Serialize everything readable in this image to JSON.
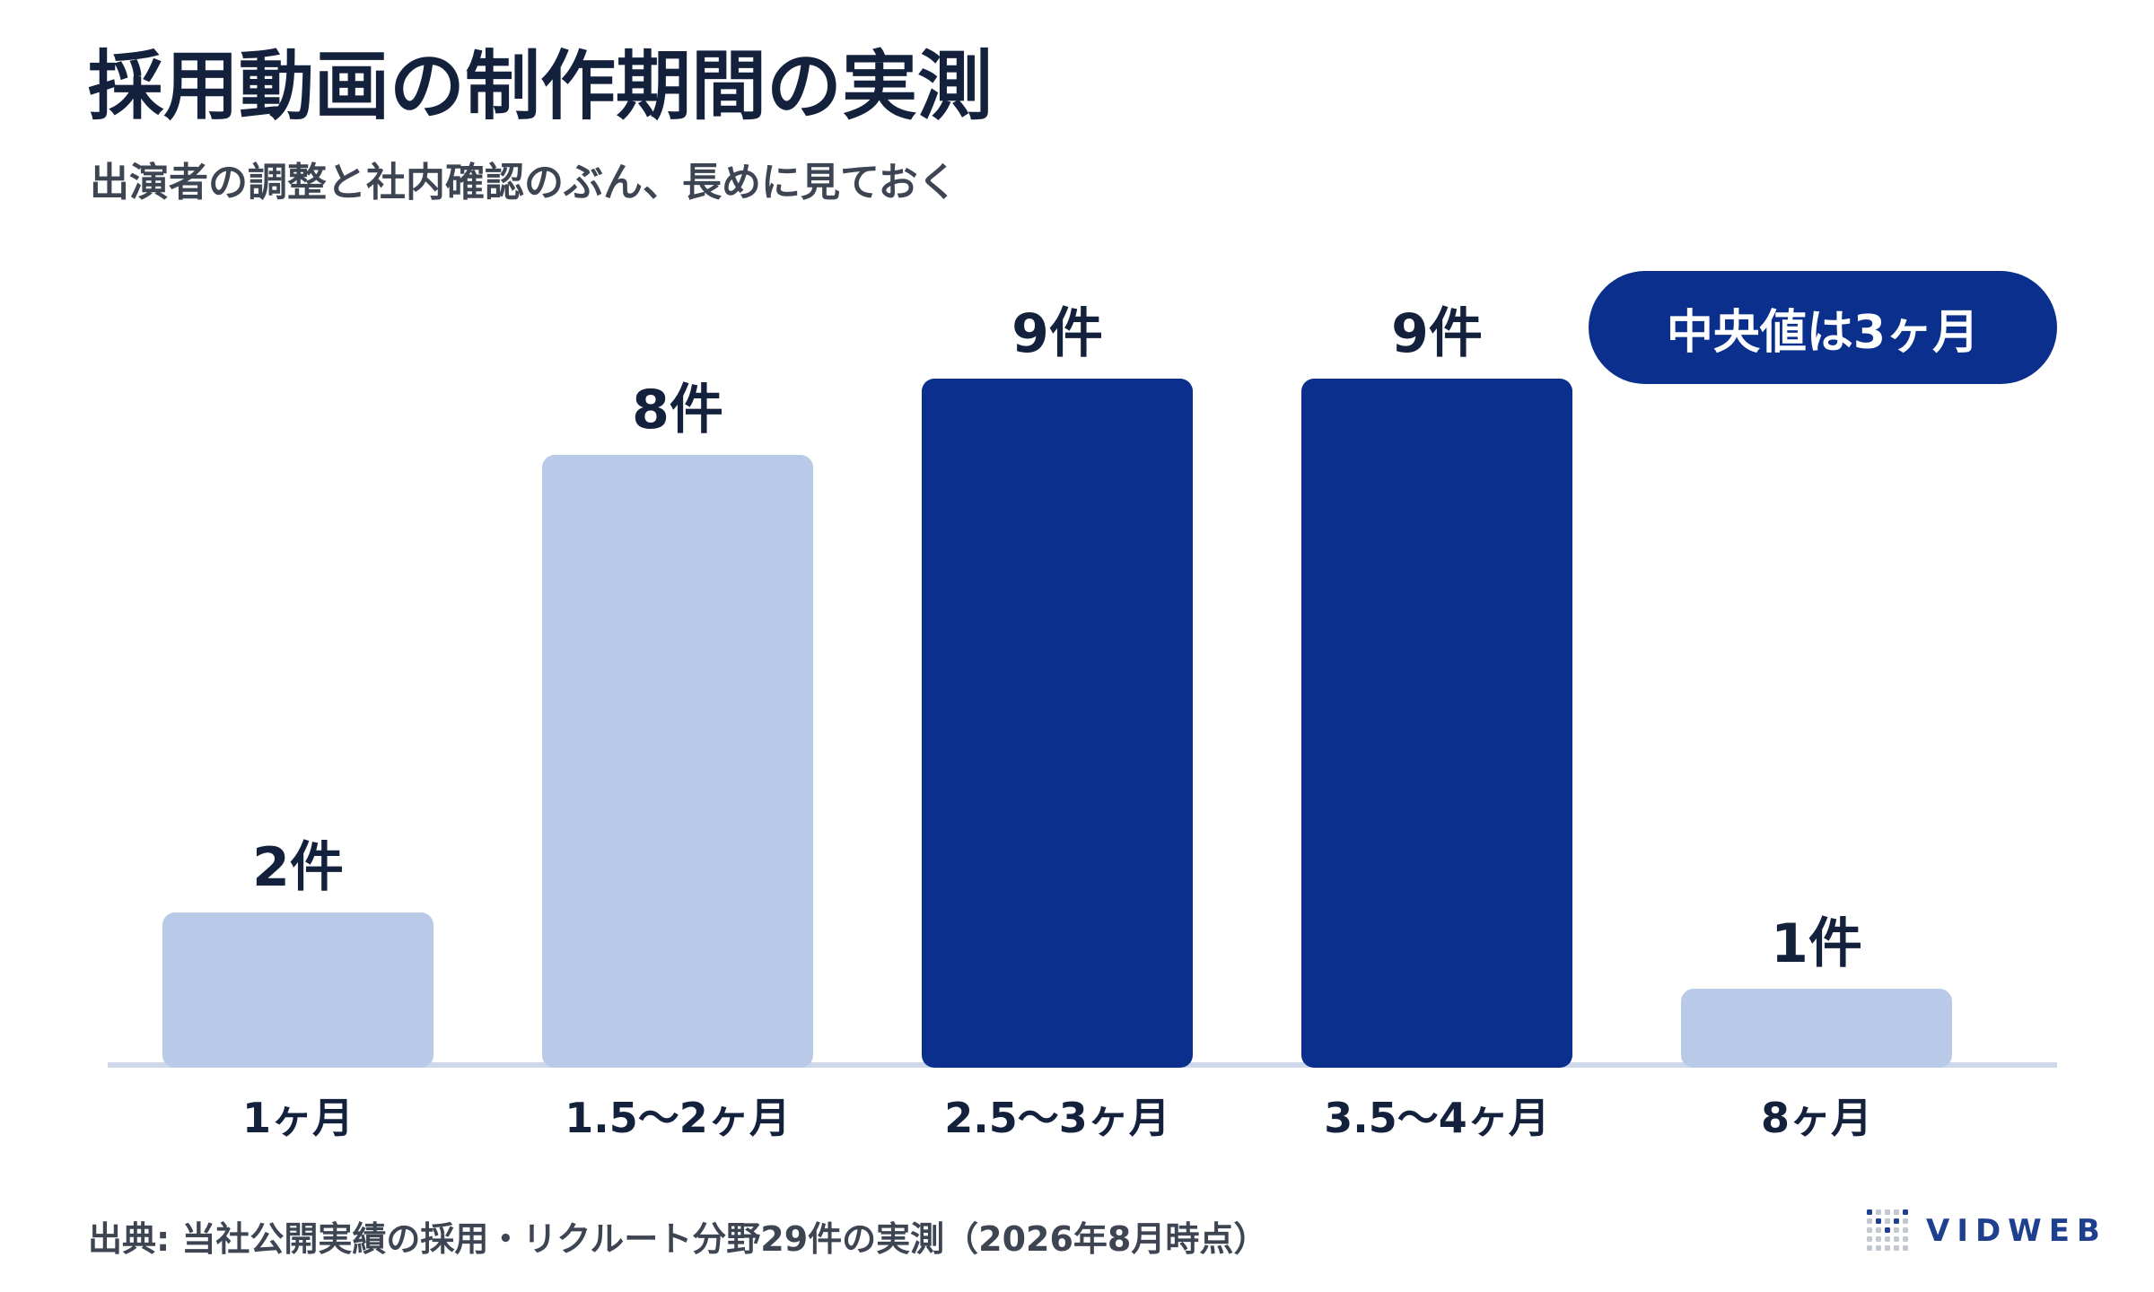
{
  "title": "採用動画の制作期間の実測",
  "subtitle": "出演者の調整と社内確認のぶん、長めに見ておく",
  "badge": {
    "text": "中央値は3ヶ月"
  },
  "source": "出典: 当社公開実績の採用・リクルート分野29件の実測（2026年8月時点）",
  "logo": {
    "text": "VIDWEB",
    "icon": "dot-grid-v-icon"
  },
  "colors": {
    "highlight": "#0a2f8c",
    "normal": "#b9cae8",
    "axis": "#cfd7ea",
    "text": "#14213d"
  },
  "chart_data": {
    "type": "bar",
    "title": "採用動画の制作期間の実測",
    "subtitle": "出演者の調整と社内確認のぶん、長めに見ておく",
    "categories": [
      "1ヶ月",
      "1.5〜2ヶ月",
      "2.5〜3ヶ月",
      "3.5〜4ヶ月",
      "8ヶ月"
    ],
    "values": [
      2,
      8,
      9,
      9,
      1
    ],
    "data_labels": [
      "2件",
      "8件",
      "9件",
      "9件",
      "1件"
    ],
    "highlighted": [
      false,
      false,
      true,
      true,
      false
    ],
    "ylim": [
      0,
      9
    ],
    "grid": false,
    "xlabel": "",
    "ylabel": ""
  }
}
